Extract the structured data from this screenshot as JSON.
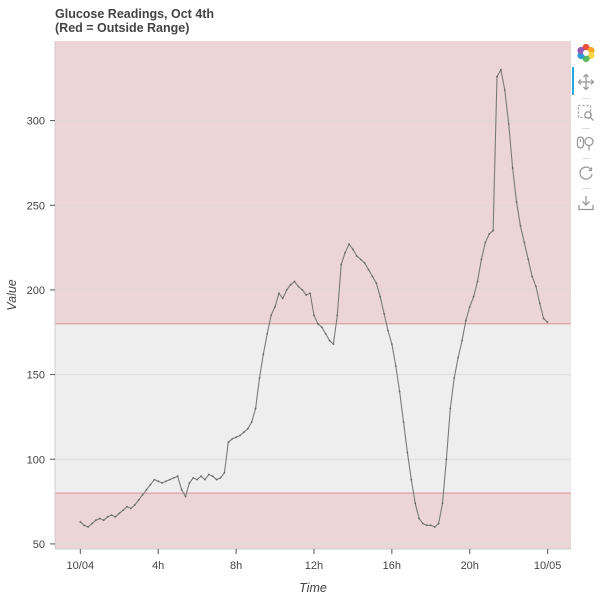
{
  "title": {
    "line1": "Glucose Readings, Oct 4th",
    "line2": "(Red = Outside Range)"
  },
  "chart_data": {
    "type": "line",
    "title": "Glucose Readings, Oct 4th (Red = Outside Range)",
    "xlabel": "Time",
    "ylabel": "Value",
    "x_unit": "hours since 10/04 00:00",
    "xlim": [
      -1.3,
      25.2
    ],
    "ylim": [
      47,
      347
    ],
    "x_ticks": [
      {
        "value": 0,
        "label": "10/04"
      },
      {
        "value": 4,
        "label": "4h"
      },
      {
        "value": 8,
        "label": "8h"
      },
      {
        "value": 12,
        "label": "12h"
      },
      {
        "value": 16,
        "label": "16h"
      },
      {
        "value": 20,
        "label": "20h"
      },
      {
        "value": 24,
        "label": "10/05"
      }
    ],
    "y_ticks": [
      50,
      100,
      150,
      200,
      250,
      300
    ],
    "normal_range": [
      80,
      180
    ],
    "colors": {
      "out_of_range": "#ecd5d6",
      "in_range": "#eeeeee",
      "boundary": "#dba3a3",
      "line": "#7a7a7a",
      "grid": "#d8d8d8"
    },
    "grid": true,
    "series": [
      {
        "name": "Glucose",
        "points": [
          [
            0.0,
            63
          ],
          [
            0.2,
            61
          ],
          [
            0.4,
            60
          ],
          [
            0.6,
            62
          ],
          [
            0.8,
            64
          ],
          [
            1.0,
            65
          ],
          [
            1.2,
            64
          ],
          [
            1.4,
            66
          ],
          [
            1.6,
            67
          ],
          [
            1.8,
            66
          ],
          [
            2.0,
            68
          ],
          [
            2.2,
            70
          ],
          [
            2.4,
            72
          ],
          [
            2.6,
            71
          ],
          [
            2.8,
            73
          ],
          [
            3.0,
            76
          ],
          [
            3.2,
            79
          ],
          [
            3.4,
            82
          ],
          [
            3.6,
            85
          ],
          [
            3.8,
            88
          ],
          [
            4.0,
            87
          ],
          [
            4.2,
            86
          ],
          [
            4.4,
            87
          ],
          [
            4.6,
            88
          ],
          [
            4.8,
            89
          ],
          [
            5.0,
            90
          ],
          [
            5.2,
            82
          ],
          [
            5.4,
            78
          ],
          [
            5.6,
            86
          ],
          [
            5.8,
            89
          ],
          [
            6.0,
            88
          ],
          [
            6.2,
            90
          ],
          [
            6.4,
            88
          ],
          [
            6.6,
            91
          ],
          [
            6.8,
            90
          ],
          [
            7.0,
            88
          ],
          [
            7.2,
            89
          ],
          [
            7.4,
            92
          ],
          [
            7.6,
            110
          ],
          [
            7.8,
            112
          ],
          [
            8.0,
            113
          ],
          [
            8.2,
            114
          ],
          [
            8.4,
            116
          ],
          [
            8.6,
            118
          ],
          [
            8.8,
            122
          ],
          [
            9.0,
            130
          ],
          [
            9.2,
            148
          ],
          [
            9.4,
            162
          ],
          [
            9.6,
            174
          ],
          [
            9.8,
            185
          ],
          [
            10.0,
            190
          ],
          [
            10.2,
            198
          ],
          [
            10.4,
            195
          ],
          [
            10.6,
            200
          ],
          [
            10.8,
            203
          ],
          [
            11.0,
            205
          ],
          [
            11.2,
            202
          ],
          [
            11.4,
            200
          ],
          [
            11.6,
            197
          ],
          [
            11.8,
            198
          ],
          [
            12.0,
            185
          ],
          [
            12.2,
            180
          ],
          [
            12.4,
            178
          ],
          [
            12.6,
            174
          ],
          [
            12.8,
            170
          ],
          [
            13.0,
            168
          ],
          [
            13.2,
            185
          ],
          [
            13.4,
            215
          ],
          [
            13.6,
            222
          ],
          [
            13.8,
            227
          ],
          [
            14.0,
            224
          ],
          [
            14.2,
            220
          ],
          [
            14.4,
            218
          ],
          [
            14.6,
            216
          ],
          [
            14.8,
            212
          ],
          [
            15.0,
            208
          ],
          [
            15.2,
            204
          ],
          [
            15.4,
            196
          ],
          [
            15.6,
            186
          ],
          [
            15.8,
            176
          ],
          [
            16.0,
            168
          ],
          [
            16.2,
            155
          ],
          [
            16.4,
            140
          ],
          [
            16.6,
            122
          ],
          [
            16.8,
            104
          ],
          [
            17.0,
            88
          ],
          [
            17.2,
            74
          ],
          [
            17.4,
            65
          ],
          [
            17.6,
            62
          ],
          [
            17.8,
            61
          ],
          [
            18.0,
            61
          ],
          [
            18.2,
            60
          ],
          [
            18.4,
            62
          ],
          [
            18.6,
            74
          ],
          [
            18.8,
            100
          ],
          [
            19.0,
            130
          ],
          [
            19.2,
            148
          ],
          [
            19.4,
            160
          ],
          [
            19.6,
            170
          ],
          [
            19.8,
            182
          ],
          [
            20.0,
            190
          ],
          [
            20.2,
            196
          ],
          [
            20.4,
            205
          ],
          [
            20.6,
            218
          ],
          [
            20.8,
            228
          ],
          [
            21.0,
            233
          ],
          [
            21.2,
            235
          ],
          [
            21.4,
            326
          ],
          [
            21.6,
            330
          ],
          [
            21.8,
            318
          ],
          [
            22.0,
            298
          ],
          [
            22.2,
            272
          ],
          [
            22.4,
            252
          ],
          [
            22.6,
            238
          ],
          [
            22.8,
            228
          ],
          [
            23.0,
            218
          ],
          [
            23.2,
            208
          ],
          [
            23.4,
            202
          ],
          [
            23.6,
            192
          ],
          [
            23.8,
            183
          ],
          [
            24.0,
            181
          ]
        ]
      }
    ]
  },
  "toolbar": [
    {
      "name": "bokeh-logo-icon",
      "active": false
    },
    {
      "name": "pan-icon",
      "active": true
    },
    {
      "name": "box-zoom-icon",
      "active": false
    },
    {
      "name": "wheel-zoom-icon",
      "active": false
    },
    {
      "name": "reset-icon",
      "active": false
    },
    {
      "name": "save-icon",
      "active": false
    }
  ]
}
